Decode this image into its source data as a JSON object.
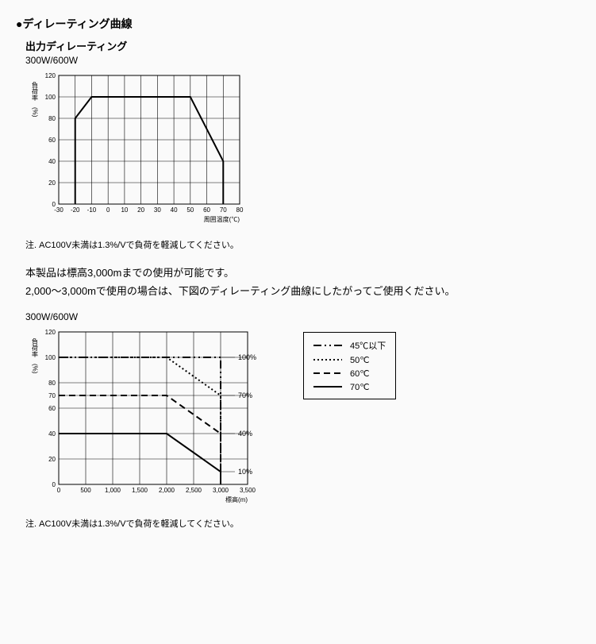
{
  "section": {
    "bullet": "●",
    "title": "ディレーティング曲線"
  },
  "chart1": {
    "subtitle": "出力ディレーティング",
    "model": "300W/600W",
    "type": "line",
    "xlabel": "周囲温度(℃)",
    "ylabel_top": "負荷率",
    "ylabel_unit": "(%)",
    "xlim": [
      -30,
      80
    ],
    "ylim": [
      0,
      120
    ],
    "xtick_step": 10,
    "ytick_step": 20,
    "xticks": [
      -30,
      -20,
      -10,
      0,
      10,
      20,
      30,
      40,
      50,
      60,
      70,
      80
    ],
    "yticks": [
      0,
      20,
      40,
      60,
      80,
      100,
      120
    ],
    "line_color": "#000000",
    "line_width": 2,
    "grid_color": "#000000",
    "background_color": "#fafafa",
    "axis_fontsize": 8,
    "label_fontsize": 8,
    "points": [
      {
        "x": -20,
        "y": 0
      },
      {
        "x": -20,
        "y": 80
      },
      {
        "x": -10,
        "y": 100
      },
      {
        "x": 50,
        "y": 100
      },
      {
        "x": 70,
        "y": 40
      },
      {
        "x": 70,
        "y": 0
      }
    ],
    "note": "注. AC100V未満は1.3%/Vで負荷を軽減してください。"
  },
  "body": {
    "line1": "本製品は標高3,000mまでの使用が可能です。",
    "line2": "2,000～3,000mで使用の場合は、下図のディレーティング曲線にしたがってご使用ください。"
  },
  "chart2": {
    "model": "300W/600W",
    "type": "line",
    "xlabel": "標高(m)",
    "ylabel_top": "負荷率",
    "ylabel_unit": "(%)",
    "xlim": [
      0,
      3500
    ],
    "ylim": [
      0,
      120
    ],
    "xtick_step": 500,
    "ytick_step": 20,
    "xticks": [
      0,
      500,
      1000,
      1500,
      2000,
      2500,
      3000,
      3500
    ],
    "xtick_labels": [
      "0",
      "500",
      "1,000",
      "1,500",
      "2,000",
      "2,500",
      "3,000",
      "3,500"
    ],
    "yticks": [
      0,
      20,
      40,
      60,
      70,
      80,
      100,
      120
    ],
    "grid_color": "#000000",
    "background_color": "#fafafa",
    "axis_fontsize": 8,
    "label_fontsize": 8,
    "series": [
      {
        "name": "45℃以下",
        "dash": "dash-dot-dot",
        "width": 2,
        "color": "#000000",
        "points": [
          {
            "x": 0,
            "y": 100
          },
          {
            "x": 3000,
            "y": 100
          },
          {
            "x": 3000,
            "y": 0
          }
        ],
        "end_label": "100%",
        "end_label_at": {
          "x": 3000,
          "y": 100
        }
      },
      {
        "name": "50℃",
        "dash": "dot",
        "width": 2,
        "color": "#000000",
        "points": [
          {
            "x": 0,
            "y": 100
          },
          {
            "x": 2000,
            "y": 100
          },
          {
            "x": 3000,
            "y": 70
          },
          {
            "x": 3000,
            "y": 0
          }
        ],
        "end_label": "70%",
        "end_label_at": {
          "x": 3000,
          "y": 70
        }
      },
      {
        "name": "60℃",
        "dash": "dash",
        "width": 2,
        "color": "#000000",
        "points": [
          {
            "x": 0,
            "y": 70
          },
          {
            "x": 2000,
            "y": 70
          },
          {
            "x": 3000,
            "y": 40
          },
          {
            "x": 3000,
            "y": 0
          }
        ],
        "end_label": "40%",
        "end_label_at": {
          "x": 3000,
          "y": 40
        }
      },
      {
        "name": "70℃",
        "dash": "solid",
        "width": 2,
        "color": "#000000",
        "points": [
          {
            "x": 0,
            "y": 40
          },
          {
            "x": 2000,
            "y": 40
          },
          {
            "x": 3000,
            "y": 10
          },
          {
            "x": 3000,
            "y": 0
          }
        ],
        "end_label": "10%",
        "end_label_at": {
          "x": 3000,
          "y": 10
        }
      }
    ],
    "legend": {
      "items": [
        {
          "label": "45℃以下",
          "dash": "dash-dot-dot"
        },
        {
          "label": "50℃",
          "dash": "dot"
        },
        {
          "label": "60℃",
          "dash": "dash"
        },
        {
          "label": "70℃",
          "dash": "solid"
        }
      ]
    },
    "note": "注. AC100V未満は1.3%/Vで負荷を軽減してください。"
  }
}
